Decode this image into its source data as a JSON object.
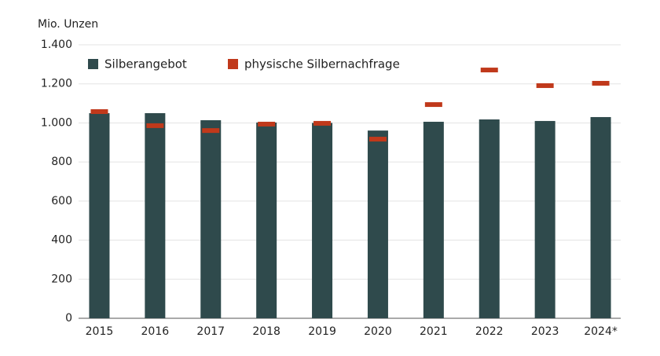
{
  "chart_data": {
    "type": "bar",
    "y_axis_label": "Mio. Unzen",
    "categories": [
      "2015",
      "2016",
      "2017",
      "2018",
      "2019",
      "2020",
      "2021",
      "2022",
      "2023",
      "2024*"
    ],
    "series": [
      {
        "name": "Silberangebot",
        "type": "bar",
        "color": "#2f4a4c",
        "values": [
          1050,
          1050,
          1014,
          1002,
          1000,
          961,
          1006,
          1018,
          1010,
          1030
        ]
      },
      {
        "name": "physische Silbernachfrage",
        "type": "marker",
        "color": "#c0391b",
        "values": [
          1058,
          986,
          961,
          994,
          998,
          917,
          1094,
          1271,
          1191,
          1203
        ]
      }
    ],
    "ylim": [
      0,
      1400
    ],
    "yticks": [
      0,
      200,
      400,
      600,
      800,
      {
        "value": 1000,
        "label": "1.000"
      },
      {
        "value": 1200,
        "label": "1.200"
      },
      {
        "value": 1400,
        "label": "1.400"
      }
    ],
    "grid": true,
    "legend": "top-left"
  }
}
